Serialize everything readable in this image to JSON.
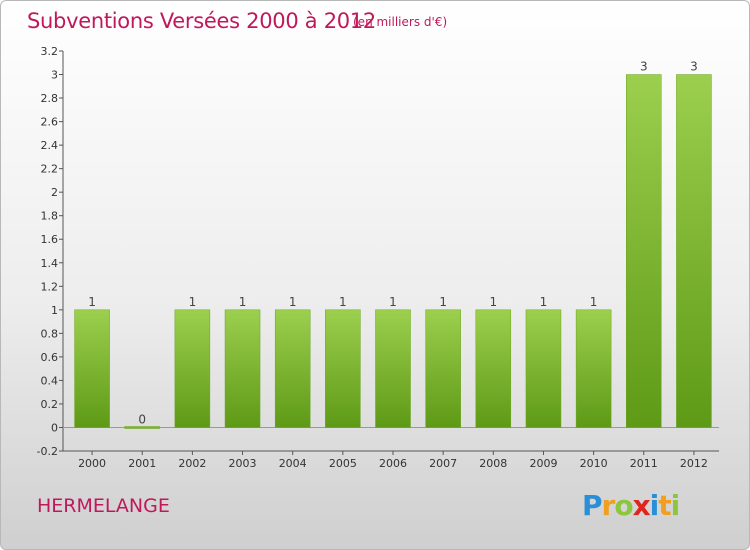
{
  "chart_data": {
    "type": "bar",
    "title": "Subventions Versées 2000 à 2012",
    "subtitle": "(en milliers d'€)",
    "categories": [
      "2000",
      "2001",
      "2002",
      "2003",
      "2004",
      "2005",
      "2006",
      "2007",
      "2008",
      "2009",
      "2010",
      "2011",
      "2012"
    ],
    "values": [
      1,
      0,
      1,
      1,
      1,
      1,
      1,
      1,
      1,
      1,
      1,
      3,
      3
    ],
    "data_labels": [
      "1",
      "0",
      "1",
      "1",
      "1",
      "1",
      "1",
      "1",
      "1",
      "1",
      "1",
      "3",
      "3"
    ],
    "ylim": [
      -0.2,
      3.2
    ],
    "yticks": [
      "-0.2",
      "0",
      "0.2",
      "0.4",
      "0.6",
      "0.8",
      "1",
      "1.2",
      "1.4",
      "1.6",
      "1.8",
      "2",
      "2.2",
      "2.4",
      "2.6",
      "2.8",
      "3",
      "3.2"
    ],
    "ytick_values": [
      -0.2,
      0,
      0.2,
      0.4,
      0.6,
      0.8,
      1,
      1.2,
      1.4,
      1.6,
      1.8,
      2,
      2.2,
      2.4,
      2.6,
      2.8,
      3,
      3.2
    ],
    "grid": false,
    "bar_color": "#7ab82e"
  },
  "footer": {
    "commune": "HERMELANGE",
    "logo_letters": [
      {
        "ch": "P",
        "color": "#2a8fd6"
      },
      {
        "ch": "r",
        "color": "#f0a020"
      },
      {
        "ch": "o",
        "color": "#8cc63f"
      },
      {
        "ch": "x",
        "color": "#e0261c"
      },
      {
        "ch": "i",
        "color": "#2a8fd6"
      },
      {
        "ch": "t",
        "color": "#f0a020"
      },
      {
        "ch": "i",
        "color": "#8cc63f"
      }
    ]
  }
}
